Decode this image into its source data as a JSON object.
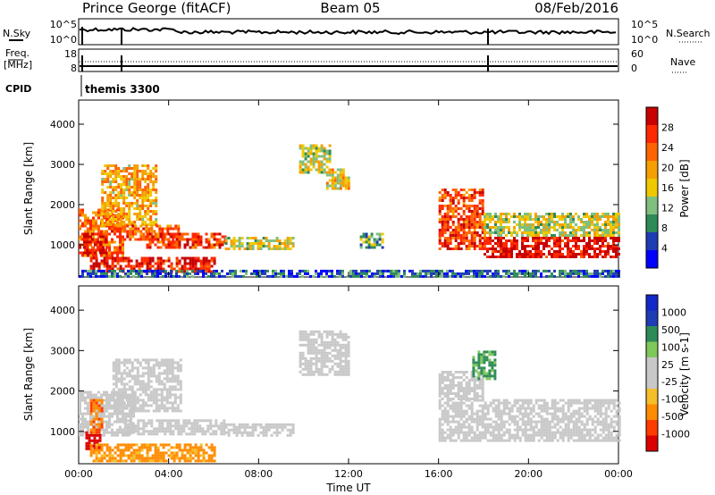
{
  "header": {
    "station": "Prince George (fitACF)",
    "beam": "Beam 05",
    "date": "08/Feb/2016"
  },
  "noise_panel": {
    "left_label": "N.Sky",
    "left_ticks": [
      "10^5",
      "10^0"
    ],
    "right_ticks": [
      "10^5",
      "10^0"
    ],
    "right_label": "N.Search"
  },
  "freq_panel": {
    "left_label_1": "Freq.",
    "left_label_2": "[MHz]",
    "left_ticks": [
      "18",
      "8"
    ],
    "right_ticks": [
      "60",
      "0"
    ],
    "right_label": "Nave"
  },
  "cpid": {
    "label": "CPID",
    "program": "themis 3300"
  },
  "colors": {
    "power_scale": [
      "#0000ff",
      "#1e3cb4",
      "#2e8b57",
      "#7fbf7f",
      "#f0c800",
      "#f5a000",
      "#ff6400",
      "#ff2800",
      "#c80000"
    ],
    "velocity_scale": [
      "#dc0000",
      "#ff3c00",
      "#ff8c00",
      "#f5be2a",
      "#c8c8c8",
      "#c8c8c8",
      "#7fc85a",
      "#2e8b57",
      "#1e3cb4",
      "#1428c8"
    ]
  },
  "chart_data": [
    {
      "type": "heatmap",
      "name": "power",
      "ylabel": "Slant Range [km]",
      "xlabel": "",
      "x_ticks": [
        "00:00",
        "04:00",
        "08:00",
        "12:00",
        "16:00",
        "20:00",
        "00:00"
      ],
      "y_ticks": [
        1000,
        2000,
        3000,
        4000
      ],
      "ylim": [
        200,
        4600
      ],
      "xlim_hours": [
        0,
        24
      ],
      "colorbar": {
        "label": "Power [dB]",
        "ticks": [
          "28",
          "24",
          "20",
          "16",
          "12",
          "8",
          "4"
        ],
        "range": [
          0,
          30
        ]
      },
      "echo_regions": [
        {
          "t0": 0.0,
          "t1": 2.0,
          "r0": 700,
          "r1": 1900,
          "value": 22
        },
        {
          "t0": 0.2,
          "t1": 1.2,
          "r0": 800,
          "r1": 1300,
          "value": 28
        },
        {
          "t0": 1.0,
          "t1": 3.5,
          "r0": 1500,
          "r1": 3000,
          "value": 18
        },
        {
          "t0": 2.0,
          "t1": 4.5,
          "r0": 1100,
          "r1": 1500,
          "value": 22
        },
        {
          "t0": 3.0,
          "t1": 6.5,
          "r0": 950,
          "r1": 1300,
          "value": 24
        },
        {
          "t0": 6.5,
          "t1": 9.5,
          "r0": 900,
          "r1": 1200,
          "value": 14
        },
        {
          "t0": 0.5,
          "t1": 6.0,
          "r0": 300,
          "r1": 700,
          "value": 26
        },
        {
          "t0": 9.8,
          "t1": 11.2,
          "r0": 2800,
          "r1": 3500,
          "value": 14
        },
        {
          "t0": 11.0,
          "t1": 12.0,
          "r0": 2400,
          "r1": 2900,
          "value": 16
        },
        {
          "t0": 12.5,
          "t1": 13.5,
          "r0": 900,
          "r1": 1300,
          "value": 10
        },
        {
          "t0": 16.0,
          "t1": 18.0,
          "r0": 900,
          "r1": 2400,
          "value": 24
        },
        {
          "t0": 18.0,
          "t1": 24.0,
          "r0": 700,
          "r1": 1200,
          "value": 28
        },
        {
          "t0": 18.0,
          "t1": 24.0,
          "r0": 1200,
          "r1": 1800,
          "value": 14
        },
        {
          "t0": 0.0,
          "t1": 24.0,
          "r0": 200,
          "r1": 380,
          "value": 6
        }
      ]
    },
    {
      "type": "heatmap",
      "name": "velocity",
      "ylabel": "Slant Range [km]",
      "xlabel": "Time UT",
      "x_ticks": [
        "00:00",
        "04:00",
        "08:00",
        "12:00",
        "16:00",
        "20:00",
        "00:00"
      ],
      "y_ticks": [
        1000,
        2000,
        3000,
        4000
      ],
      "ylim": [
        200,
        4600
      ],
      "xlim_hours": [
        0,
        24
      ],
      "colorbar": {
        "label": "Velocity [m s-1]",
        "ticks": [
          "1000",
          "500",
          "100",
          "25",
          "-25",
          "-100",
          "-500",
          "-1000"
        ],
        "range": [
          -1000,
          1000
        ]
      },
      "echo_regions": [
        {
          "t0": 0.0,
          "t1": 2.5,
          "r0": 900,
          "r1": 2000,
          "value": 0
        },
        {
          "t0": 0.5,
          "t1": 1.0,
          "r0": 1000,
          "r1": 1800,
          "value": -300
        },
        {
          "t0": 0.3,
          "t1": 0.9,
          "r0": 600,
          "r1": 1000,
          "value": -800
        },
        {
          "t0": 1.5,
          "t1": 4.5,
          "r0": 1500,
          "r1": 2800,
          "value": 0
        },
        {
          "t0": 2.0,
          "t1": 6.5,
          "r0": 950,
          "r1": 1300,
          "value": 0
        },
        {
          "t0": 6.5,
          "t1": 9.5,
          "r0": 900,
          "r1": 1200,
          "value": 0
        },
        {
          "t0": 0.5,
          "t1": 6.0,
          "r0": 300,
          "r1": 700,
          "value": -150
        },
        {
          "t0": 9.8,
          "t1": 12.0,
          "r0": 2400,
          "r1": 3500,
          "value": 0
        },
        {
          "t0": 16.0,
          "t1": 24.0,
          "r0": 800,
          "r1": 1800,
          "value": 0
        },
        {
          "t0": 16.0,
          "t1": 18.0,
          "r0": 1800,
          "r1": 2500,
          "value": 0
        },
        {
          "t0": 17.5,
          "t1": 18.5,
          "r0": 2300,
          "r1": 3000,
          "value": 150
        }
      ]
    }
  ]
}
